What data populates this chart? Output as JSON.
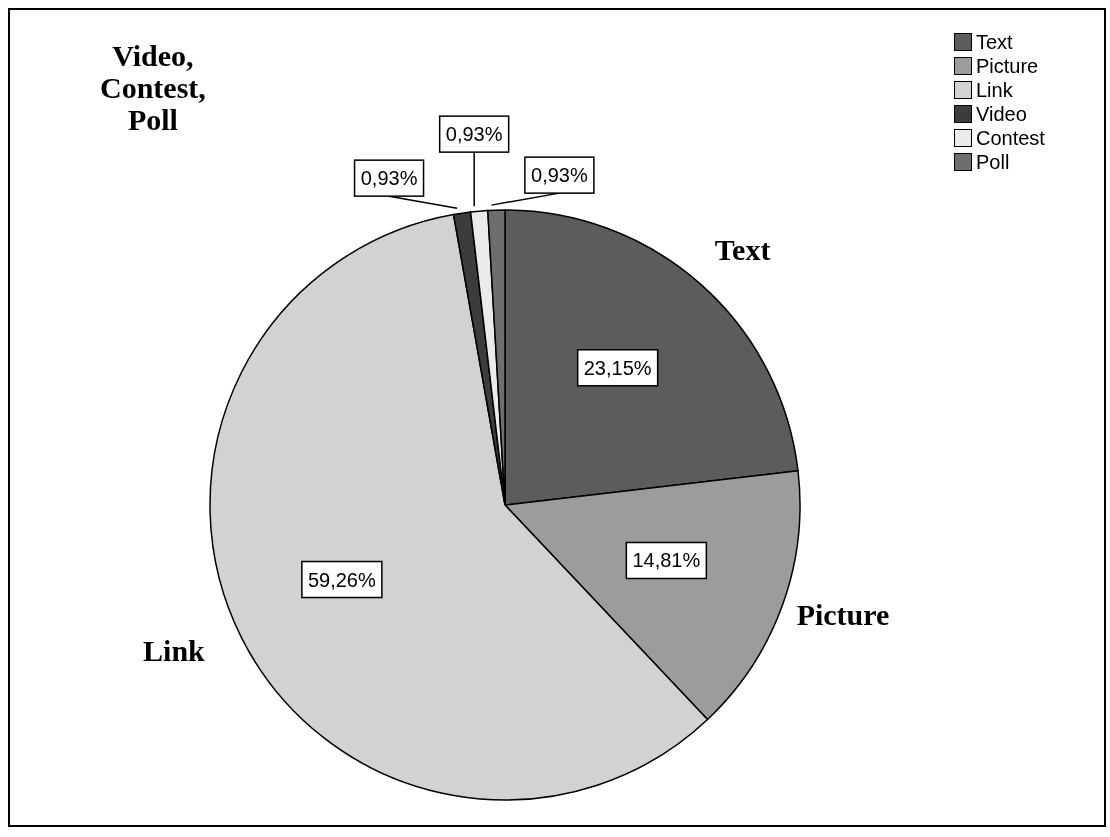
{
  "chart_data": {
    "type": "pie",
    "categories": [
      "Text",
      "Picture",
      "Link",
      "Video",
      "Contest",
      "Poll"
    ],
    "values": [
      23.15,
      14.81,
      59.26,
      0.93,
      0.93,
      0.93
    ],
    "value_labels": [
      "23,15%",
      "14,81%",
      "59,26%",
      "0,93%",
      "0,93%",
      "0,93%"
    ],
    "colors": [
      "#5c5c5c",
      "#9c9c9c",
      "#d2d2d2",
      "#3c3c3c",
      "#ebebeb",
      "#6e6e6e"
    ],
    "annotations": [
      "Video,\nContest,\nPoll"
    ],
    "legend": "top right"
  }
}
